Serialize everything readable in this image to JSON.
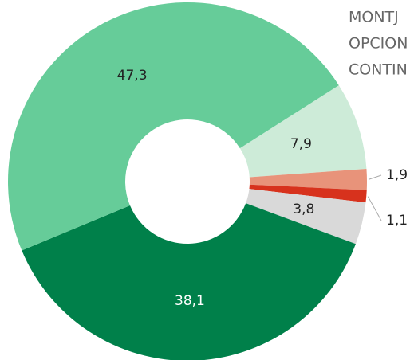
{
  "chart_data": {
    "type": "donut",
    "values": [
      7.9,
      1.9,
      1.1,
      3.8,
      38.1,
      47.3
    ],
    "value_labels": [
      "7,9",
      "1,9",
      "1,1",
      "3,8",
      "38,1",
      "47,3"
    ],
    "colors": [
      "#cdebd8",
      "#e8937a",
      "#d7321d",
      "#d9d9d9",
      "#00804a",
      "#66cc99"
    ],
    "legend": [
      "MONTJ",
      "OPCION",
      "CONTIN"
    ]
  }
}
